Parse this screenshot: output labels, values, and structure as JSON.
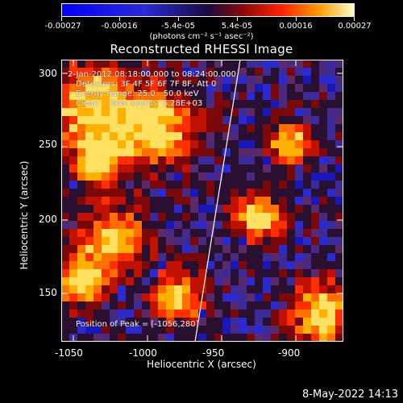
{
  "colorbar": {
    "ticks": [
      "-0.00027",
      "-0.00016",
      "-5.4e-05",
      "5.4e-05",
      "0.00016",
      "0.00027"
    ],
    "units": "(photons cm⁻² s⁻¹ asec⁻²)"
  },
  "title": "Reconstructed RHESSI Image",
  "info": {
    "line1": "2-Jan-2012 08:18:00.000 to 08:24:00.000",
    "line2": "Detectors: 3F 4F 5F 6F 7F 8F, Att 0",
    "line3": "Energy Range: 25.0 - 50.0 keV",
    "line4": "Clean    Total counts: 6.28E+03",
    "peak": "Position of Peak = [-1056,280]"
  },
  "axes": {
    "xlabel": "Heliocentric X (arcsec)",
    "ylabel": "Heliocentric Y (arcsec)",
    "xticks": [
      "-1050",
      "-1000",
      "-950",
      "-900"
    ],
    "yticks": [
      "300",
      "250",
      "200",
      "150"
    ]
  },
  "timestamp": "8-May-2022 14:13",
  "colors": {
    "background": "#000000",
    "limb": "#ffffff"
  }
}
